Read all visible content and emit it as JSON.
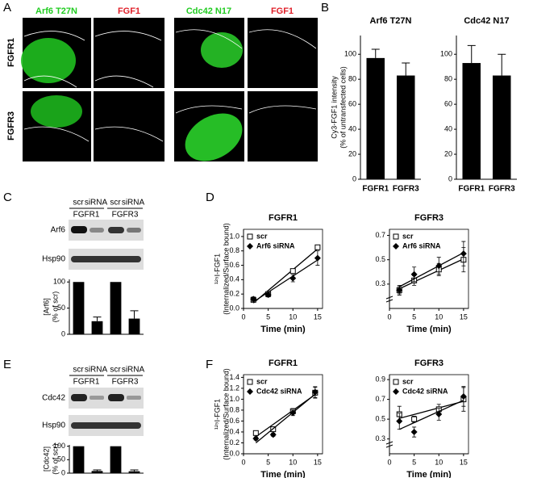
{
  "panel_labels": [
    "A",
    "B",
    "C",
    "D",
    "E",
    "F"
  ],
  "microscopy": {
    "column_labels": [
      "Arf6 T27N",
      "FGF1",
      "Cdc42 N17",
      "FGF1"
    ],
    "row_labels": [
      "FGFR1",
      "FGFR3"
    ]
  },
  "blot_C": {
    "lanes": [
      "scr",
      "siRNA",
      "scr",
      "siRNA"
    ],
    "groups": [
      "FGFR1",
      "FGFR3"
    ],
    "rows": [
      "Arf6",
      "Hsp90"
    ]
  },
  "blot_E": {
    "lanes": [
      "scr",
      "siRNA",
      "scr",
      "siRNA"
    ],
    "groups": [
      "FGFR1",
      "FGFR3"
    ],
    "rows": [
      "Cdc42",
      "Hsp90"
    ]
  },
  "chart_data": [
    {
      "type": "bar",
      "title": "Arf6 T27N",
      "ylabel": [
        "Cy3-FGF1 intensity",
        "(% of untransfected cells)"
      ],
      "categories": [
        "FGFR1",
        "FGFR3"
      ],
      "values": [
        97,
        83
      ],
      "errors": [
        7,
        10
      ],
      "color": "#000000",
      "ylim": [
        0,
        115
      ],
      "yticks": [
        0,
        20,
        40,
        60,
        80,
        100
      ]
    },
    {
      "type": "bar",
      "title": "Cdc42 N17",
      "categories": [
        "FGFR1",
        "FGFR3"
      ],
      "values": [
        93,
        83
      ],
      "errors": [
        14,
        17
      ],
      "color": "#000000",
      "ylim": [
        0,
        115
      ],
      "yticks": [
        0,
        20,
        40,
        60,
        80,
        100
      ]
    },
    {
      "type": "bar",
      "ylabel": [
        "[Arf6]",
        "(% of scr)"
      ],
      "categories": [
        null,
        null,
        null,
        null
      ],
      "values": [
        100,
        25,
        100,
        30
      ],
      "errors": [
        null,
        8,
        null,
        15
      ],
      "color": "#000000",
      "ylim": [
        0,
        105
      ],
      "yticks": [
        0,
        50,
        100
      ]
    },
    {
      "type": "line",
      "title": "FGFR1",
      "xlabel": "Time (min)",
      "ylabel": [
        "¹²⁵I-FGF1",
        "(Internalized/Surface bound)"
      ],
      "x": [
        2,
        5,
        10,
        15
      ],
      "xlim": [
        0,
        16
      ],
      "xticks": [
        0,
        5,
        10,
        15
      ],
      "ylim": [
        0,
        1.1
      ],
      "yticks": [
        {
          "value": 0,
          "label": "0.0"
        },
        0.2,
        0.4,
        0.6,
        0.8,
        {
          "value": 1,
          "label": "1.0"
        }
      ],
      "series": [
        {
          "name": "scr",
          "color": "#000000",
          "marker": "open-square",
          "values": [
            0.12,
            0.2,
            0.52,
            0.85
          ],
          "errors": [
            0.02,
            0.02,
            0.03,
            0.03
          ]
        },
        {
          "name": "Arf6 siRNA",
          "color": "#000000",
          "marker": "diamond",
          "values": [
            0.13,
            0.19,
            0.42,
            0.7
          ],
          "errors": [
            0.03,
            0.03,
            0.05,
            0.1
          ]
        }
      ]
    },
    {
      "type": "line",
      "title": "FGFR3",
      "xlabel": "Time (min)",
      "axis_break": true,
      "x": [
        2,
        5,
        10,
        15
      ],
      "xlim": [
        0,
        16
      ],
      "xticks": [
        0,
        5,
        10,
        15
      ],
      "ylim": [
        0.1,
        0.75
      ],
      "yticks": [
        0.3,
        0.5,
        0.7
      ],
      "series": [
        {
          "name": "scr",
          "color": "#000000",
          "marker": "open-square",
          "values": [
            0.25,
            0.33,
            0.42,
            0.5
          ],
          "errors": [
            0.03,
            0.04,
            0.05,
            0.1
          ]
        },
        {
          "name": "Arf6 siRNA",
          "color": "#000000",
          "marker": "diamond",
          "values": [
            0.25,
            0.38,
            0.45,
            0.55
          ],
          "errors": [
            0.04,
            0.06,
            0.07,
            0.1
          ]
        }
      ]
    },
    {
      "type": "bar",
      "ylabel": [
        "[Cdc42]",
        "(% of scr)"
      ],
      "categories": [
        null,
        null,
        null,
        null
      ],
      "values": [
        100,
        8,
        100,
        7
      ],
      "errors": [
        null,
        4,
        null,
        5
      ],
      "color": "#000000",
      "ylim": [
        0,
        105
      ],
      "yticks": [
        0,
        50,
        100
      ]
    },
    {
      "type": "line",
      "title": "FGFR1",
      "xlabel": "Time (min)",
      "ylabel": [
        "¹²⁵I-FGF1",
        "(Internalized/Surface bound)"
      ],
      "x": [
        2.5,
        6,
        10,
        14.5
      ],
      "xlim": [
        0,
        16
      ],
      "xticks": [
        0,
        5,
        10,
        15
      ],
      "ylim": [
        0,
        1.45
      ],
      "yticks": [
        {
          "value": 0,
          "label": "0.0"
        },
        0.2,
        0.4,
        0.6,
        0.8,
        {
          "value": 1,
          "label": "1.0"
        },
        1.2,
        1.4
      ],
      "series": [
        {
          "name": "scr",
          "color": "#000000",
          "marker": "open-square",
          "values": [
            0.38,
            0.45,
            0.78,
            1.12
          ],
          "errors": [
            0.02,
            0.03,
            0.05,
            0.1
          ]
        },
        {
          "name": "Cdc42 siRNA",
          "color": "#000000",
          "marker": "diamond",
          "values": [
            0.28,
            0.35,
            0.75,
            1.13
          ],
          "errors": [
            0.03,
            0.03,
            0.05,
            0.1
          ]
        }
      ]
    },
    {
      "type": "line",
      "title": "FGFR3",
      "xlabel": "Time (min)",
      "axis_break": true,
      "x": [
        2,
        5,
        10,
        15
      ],
      "xlim": [
        0,
        16
      ],
      "xticks": [
        0,
        5,
        10,
        15
      ],
      "ylim": [
        0.15,
        0.95
      ],
      "yticks": [
        0.3,
        0.5,
        0.7,
        0.9
      ],
      "series": [
        {
          "name": "scr",
          "color": "#000000",
          "marker": "open-square",
          "values": [
            0.55,
            0.5,
            0.6,
            0.7
          ],
          "errors": [
            0.08,
            0.03,
            0.05,
            0.12
          ]
        },
        {
          "name": "Cdc42 siRNA",
          "color": "#000000",
          "marker": "diamond",
          "values": [
            0.48,
            0.37,
            0.55,
            0.73
          ],
          "errors": [
            0.08,
            0.05,
            0.06,
            0.1
          ]
        }
      ]
    }
  ]
}
